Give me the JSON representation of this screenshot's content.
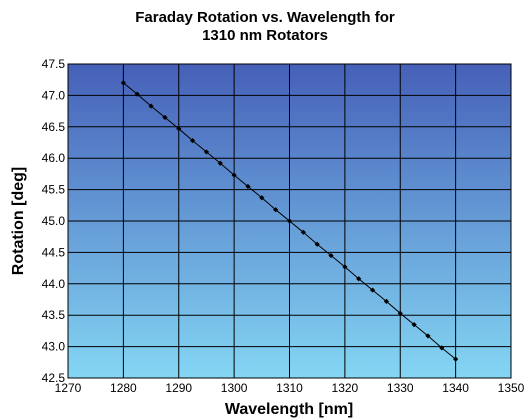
{
  "chart_data": {
    "type": "line",
    "title_lines": [
      "Faraday Rotation vs. Wavelength for",
      "1310 nm Rotators"
    ],
    "xlabel": "Wavelength [nm]",
    "ylabel": "Rotation [deg]",
    "xlim": [
      1270,
      1350
    ],
    "ylim": [
      42.5,
      47.5
    ],
    "x_ticks": [
      1270,
      1280,
      1290,
      1300,
      1310,
      1320,
      1330,
      1340,
      1350
    ],
    "y_ticks": [
      42.5,
      43.0,
      43.5,
      44.0,
      44.5,
      45.0,
      45.5,
      46.0,
      46.5,
      47.0,
      47.5
    ],
    "x_tick_labels": [
      "1270",
      "1280",
      "1290",
      "1300",
      "1310",
      "1320",
      "1330",
      "1340",
      "1350"
    ],
    "y_tick_labels": [
      "42.5",
      "43.0",
      "43.5",
      "44.0",
      "44.5",
      "45.0",
      "45.5",
      "46.0",
      "46.5",
      "47.0",
      "47.5"
    ],
    "grid": true,
    "series": [
      {
        "color": "#000000",
        "marker": "diamond",
        "x": [
          1280,
          1282.5,
          1285,
          1287.5,
          1290,
          1292.5,
          1295,
          1297.5,
          1300,
          1302.5,
          1305,
          1307.5,
          1310,
          1312.5,
          1315,
          1317.5,
          1320,
          1322.5,
          1325,
          1327.5,
          1330,
          1332.5,
          1335,
          1337.5,
          1340
        ],
        "y": [
          47.2,
          47.02,
          46.83,
          46.65,
          46.47,
          46.28,
          46.1,
          45.92,
          45.73,
          45.55,
          45.37,
          45.18,
          45.0,
          44.82,
          44.63,
          44.45,
          44.27,
          44.08,
          43.9,
          43.72,
          43.53,
          43.35,
          43.17,
          42.98,
          42.8
        ]
      }
    ]
  },
  "colors": {
    "plot_gradient_top": "#4660b8",
    "plot_gradient_bottom": "#84d6f4",
    "grid": "#000000",
    "line": "#000000"
  }
}
